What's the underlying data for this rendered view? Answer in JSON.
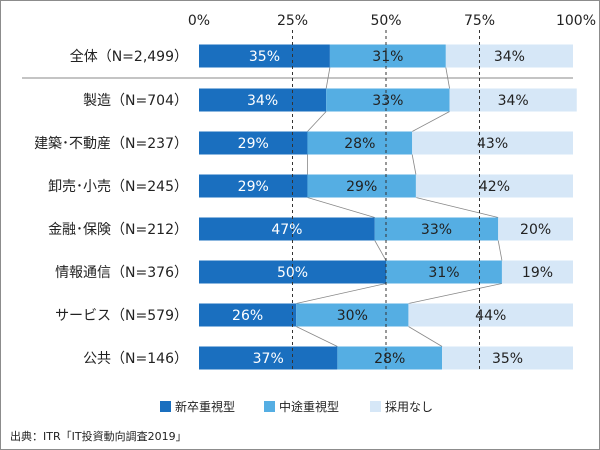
{
  "chart_data": {
    "type": "bar",
    "orientation": "horizontal",
    "stacked": true,
    "percent_stacked": true,
    "axis_ticks": [
      "0%",
      "25%",
      "50%",
      "75%",
      "100%"
    ],
    "xlim": [
      0,
      100
    ],
    "categories": [
      "全体（N=2,499）",
      "製造（N=704）",
      "建築･不動産（N=237）",
      "卸売･小売（N=245）",
      "金融･保険（N=212）",
      "情報通信（N=376）",
      "サービス（N=579）",
      "公共（N=146）"
    ],
    "series": [
      {
        "name": "新卒重視型",
        "color": "#1a6fbf",
        "label_color": "#ffffff",
        "values": [
          35,
          34,
          29,
          29,
          47,
          50,
          26,
          37
        ]
      },
      {
        "name": "中途重視型",
        "color": "#55aee3",
        "label_color": "#222222",
        "values": [
          31,
          33,
          28,
          29,
          33,
          31,
          30,
          28
        ]
      },
      {
        "name": "採用なし",
        "color": "#d6e7f7",
        "label_color": "#222222",
        "values": [
          34,
          34,
          43,
          42,
          20,
          19,
          44,
          35
        ]
      }
    ],
    "legend_position": "bottom",
    "gridlines": "dashed at 25%, 50%, 75%",
    "source": "出典：ITR「IT投資動向調査2019」"
  }
}
